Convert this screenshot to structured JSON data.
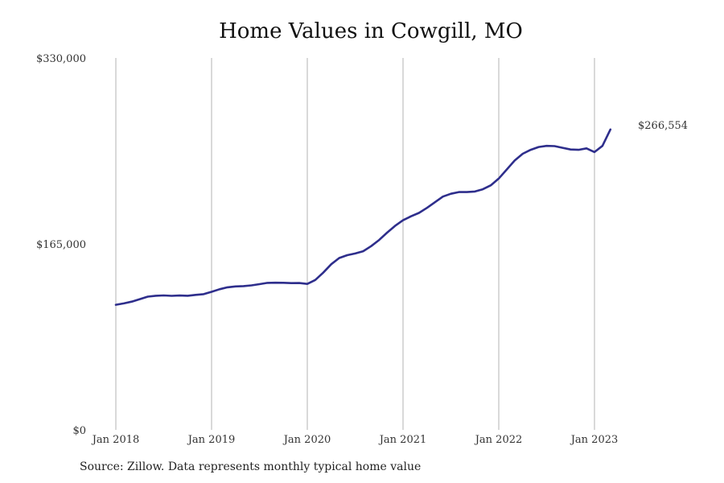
{
  "chart_data": {
    "type": "line",
    "title": "Home Values in Cowgill, MO",
    "xlabel": "",
    "ylabel": "",
    "ylim": [
      0,
      330000
    ],
    "y_ticks": [
      0,
      165000,
      330000
    ],
    "y_tick_labels": [
      "$0",
      "$165,000",
      "$330,000"
    ],
    "x_ticks": [
      "2018-01",
      "2019-01",
      "2020-01",
      "2021-01",
      "2022-01",
      "2023-01"
    ],
    "x_tick_labels": [
      "Jan 2018",
      "Jan 2019",
      "Jan 2020",
      "Jan 2021",
      "Jan 2022",
      "Jan 2023"
    ],
    "grid": "vertical",
    "series": [
      {
        "color": "#2e2e8c",
        "x": [
          "2018-01",
          "2018-02",
          "2018-03",
          "2018-04",
          "2018-05",
          "2018-06",
          "2018-07",
          "2018-08",
          "2018-09",
          "2018-10",
          "2018-11",
          "2018-12",
          "2019-01",
          "2019-02",
          "2019-03",
          "2019-04",
          "2019-05",
          "2019-06",
          "2019-07",
          "2019-08",
          "2019-09",
          "2019-10",
          "2019-11",
          "2019-12",
          "2020-01",
          "2020-02",
          "2020-03",
          "2020-04",
          "2020-05",
          "2020-06",
          "2020-07",
          "2020-08",
          "2020-09",
          "2020-10",
          "2020-11",
          "2020-12",
          "2021-01",
          "2021-02",
          "2021-03",
          "2021-04",
          "2021-05",
          "2021-06",
          "2021-07",
          "2021-08",
          "2021-09",
          "2021-10",
          "2021-11",
          "2021-12",
          "2022-01",
          "2022-02",
          "2022-03",
          "2022-04",
          "2022-05",
          "2022-06",
          "2022-07",
          "2022-08",
          "2022-09",
          "2022-10",
          "2022-11",
          "2022-12",
          "2023-01",
          "2023-02",
          "2023-03"
        ],
        "y": [
          111000,
          112200,
          113800,
          116000,
          118200,
          119000,
          119300,
          118900,
          119200,
          119000,
          119800,
          120400,
          122500,
          124800,
          126500,
          127300,
          127600,
          128200,
          129300,
          130400,
          130600,
          130500,
          130200,
          130300,
          129500,
          133000,
          139500,
          147000,
          152500,
          155000,
          156500,
          158500,
          163000,
          168500,
          175000,
          181000,
          186000,
          189500,
          192500,
          197000,
          202000,
          207000,
          209500,
          211000,
          211000,
          211500,
          213500,
          217000,
          223000,
          231000,
          239000,
          245000,
          248500,
          251000,
          252000,
          251800,
          250300,
          248800,
          248500,
          249800,
          246500,
          252000,
          266554
        ]
      }
    ],
    "annotations": [
      {
        "text": "$266,554",
        "color": "#2e2e8c"
      }
    ]
  },
  "source_text": "Source: Zillow. Data represents monthly typical home value"
}
